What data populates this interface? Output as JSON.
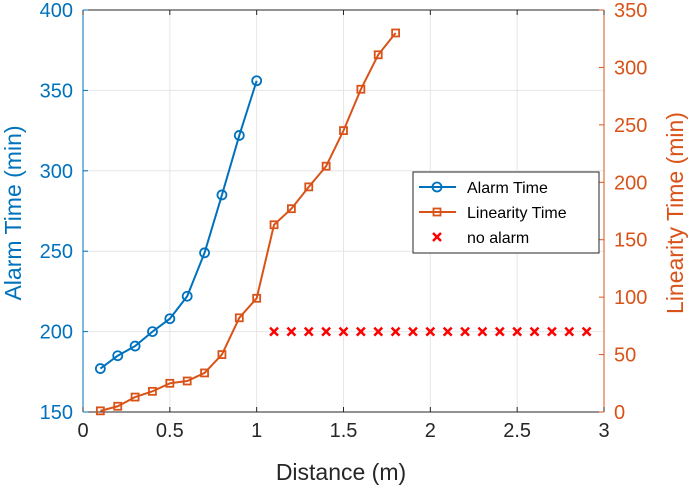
{
  "chart_data": {
    "type": "line",
    "xlabel": "Distance (m)",
    "ylabel_left": "Alarm Time (min)",
    "ylabel_right": "Linearity Time (min)",
    "xlim": [
      0,
      3
    ],
    "ylim_left": [
      150,
      400
    ],
    "ylim_right": [
      0,
      350
    ],
    "xticks": [
      0,
      0.5,
      1,
      1.5,
      2,
      2.5,
      3
    ],
    "xtick_labels": [
      "0",
      "0.5",
      "1",
      "1.5",
      "2",
      "2.5",
      "3"
    ],
    "yticks_left": [
      150,
      200,
      250,
      300,
      350,
      400
    ],
    "yticks_right": [
      0,
      50,
      100,
      150,
      200,
      250,
      300,
      350
    ],
    "grid": true,
    "legend_position": "right",
    "colors": {
      "alarm": "#0072BD",
      "linearity": "#D95319",
      "no_alarm": "#FF0000"
    },
    "series": [
      {
        "name": "Alarm Time",
        "axis": "left",
        "marker": "circle",
        "x": [
          0.1,
          0.2,
          0.3,
          0.4,
          0.5,
          0.6,
          0.7,
          0.8,
          0.9,
          1.0
        ],
        "y": [
          177,
          185,
          191,
          200,
          208,
          222,
          249,
          285,
          322,
          356
        ]
      },
      {
        "name": "Linearity Time",
        "axis": "right",
        "marker": "square",
        "x": [
          0.1,
          0.2,
          0.3,
          0.4,
          0.5,
          0.6,
          0.7,
          0.8,
          0.9,
          1.0,
          1.1,
          1.2,
          1.3,
          1.4,
          1.5,
          1.6,
          1.7,
          1.8
        ],
        "y": [
          1,
          5,
          13,
          18,
          25,
          27,
          34,
          50,
          82,
          99,
          163,
          177,
          196,
          214,
          245,
          281,
          311,
          330
        ]
      },
      {
        "name": "no alarm",
        "axis": "right",
        "marker": "x",
        "line": false,
        "x": [
          1.1,
          1.2,
          1.3,
          1.4,
          1.5,
          1.6,
          1.7,
          1.8,
          1.9,
          2.0,
          2.1,
          2.2,
          2.3,
          2.4,
          2.5,
          2.6,
          2.7,
          2.8,
          2.9
        ],
        "y": [
          70,
          70,
          70,
          70,
          70,
          70,
          70,
          70,
          70,
          70,
          70,
          70,
          70,
          70,
          70,
          70,
          70,
          70,
          70
        ]
      }
    ]
  }
}
